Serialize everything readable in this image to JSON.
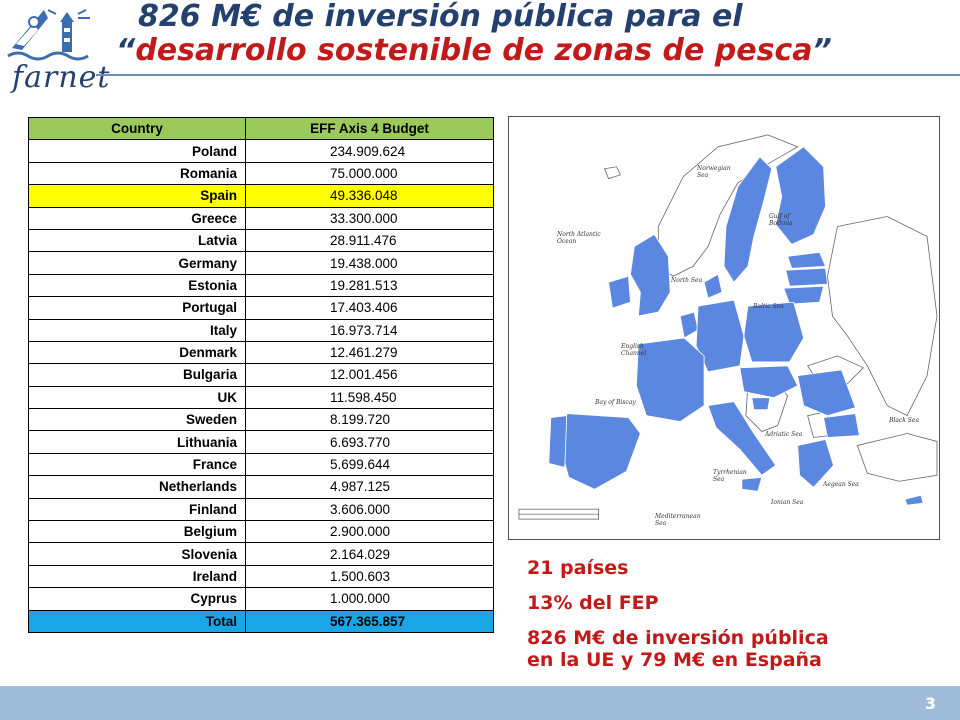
{
  "logo": {
    "text": "farnet"
  },
  "title": {
    "line1": "826 M€ de inversión pública para el",
    "line2_open_quote": "“",
    "line2_highlight": "desarrollo sostenible de zonas de pesca",
    "line2_close_quote": "”"
  },
  "table": {
    "headers": [
      "Country",
      "EFF Axis 4 Budget"
    ],
    "rows": [
      {
        "country": "Poland",
        "budget": "234.909.624"
      },
      {
        "country": "Romania",
        "budget": "75.000.000"
      },
      {
        "country": "Spain",
        "budget": "49.336.048"
      },
      {
        "country": "Greece",
        "budget": "33.300.000"
      },
      {
        "country": "Latvia",
        "budget": "28.911.476"
      },
      {
        "country": "Germany",
        "budget": "19.438.000"
      },
      {
        "country": "Estonia",
        "budget": "19.281.513"
      },
      {
        "country": "Portugal",
        "budget": "17.403.406"
      },
      {
        "country": "Italy",
        "budget": "16.973.714"
      },
      {
        "country": "Denmark",
        "budget": "12.461.279"
      },
      {
        "country": "Bulgaria",
        "budget": "12.001.456"
      },
      {
        "country": "UK",
        "budget": "11.598.450"
      },
      {
        "country": "Sweden",
        "budget": "8.199.720"
      },
      {
        "country": "Lithuania",
        "budget": "6.693.770"
      },
      {
        "country": "France",
        "budget": "5.699.644"
      },
      {
        "country": "Netherlands",
        "budget": "4.987.125"
      },
      {
        "country": "Finland",
        "budget": "3.606.000"
      },
      {
        "country": "Belgium",
        "budget": "2.900.000"
      },
      {
        "country": "Slovenia",
        "budget": "2.164.029"
      },
      {
        "country": "Ireland",
        "budget": "1.500.603"
      },
      {
        "country": "Cyprus",
        "budget": "1.000.000"
      }
    ],
    "total": {
      "country": "Total",
      "budget": "567.365.857"
    },
    "highlight_row": "Spain",
    "colors": {
      "header": "#9bc95c",
      "highlight": "#ffff00",
      "total": "#1aa6e6"
    }
  },
  "map": {
    "labels": {
      "norwegian_sea": "Norwegian Sea",
      "north_atlantic": "North Atlantic Ocean",
      "gulf_bothnia": "Gulf of Bothnia",
      "north_sea": "North Sea",
      "baltic_sea": "Baltic Sea",
      "english_channel": "English Channel",
      "bay_biscay": "Bay of Biscay",
      "black_sea": "Black Sea",
      "adriatic_sea": "Adriatic Sea",
      "tyrrhenian_sea": "Tyrrhenian Sea",
      "ionian_sea": "Ionian Sea",
      "aegean_sea": "Aegean Sea",
      "mediterranean_sea": "Mediterranean Sea"
    },
    "colors": {
      "member": "#5b87e0",
      "other": "#ffffff",
      "border": "#666666"
    }
  },
  "notes": {
    "countries": "21 países",
    "percent": "13% del FEP",
    "investment_line1": "826 M€ de inversión pública",
    "investment_line2": "en la UE y 79 M€ en España"
  },
  "footer": {
    "page_number": "3",
    "color": "#9fbcd8"
  }
}
